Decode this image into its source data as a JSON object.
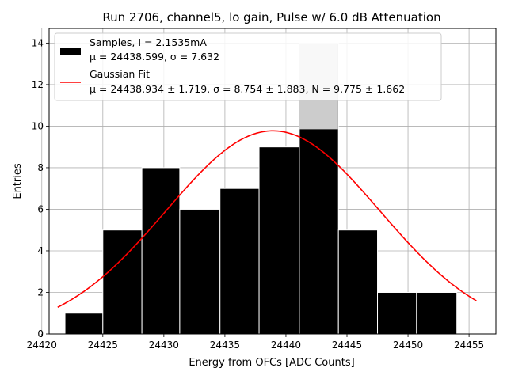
{
  "chart_data": {
    "type": "bar",
    "title": "Run 2706, channel5, lo gain, Pulse w/ 6.0 dB Attenuation",
    "xlabel": "Energy from OFCs [ADC Counts]",
    "ylabel": "Entries",
    "xlim": [
      24420.6,
      24457.2
    ],
    "ylim": [
      0,
      14.7
    ],
    "grid": true,
    "x_ticks": [
      24420,
      24425,
      24430,
      24435,
      24440,
      24445,
      24450,
      24455
    ],
    "y_ticks": [
      0,
      2,
      4,
      6,
      8,
      10,
      12,
      14
    ],
    "legend_placement": "top-left",
    "bars": [
      {
        "x0": 24421.9,
        "x1": 24425.0,
        "value": 1
      },
      {
        "x0": 24425.0,
        "x1": 24428.2,
        "value": 5
      },
      {
        "x0": 24428.2,
        "x1": 24431.3,
        "value": 8
      },
      {
        "x0": 24431.3,
        "x1": 24434.6,
        "value": 6
      },
      {
        "x0": 24434.6,
        "x1": 24437.8,
        "value": 7
      },
      {
        "x0": 24437.8,
        "x1": 24441.1,
        "value": 9
      },
      {
        "x0": 24441.1,
        "x1": 24444.3,
        "value": 14
      },
      {
        "x0": 24444.3,
        "x1": 24447.5,
        "value": 5
      },
      {
        "x0": 24447.5,
        "x1": 24450.7,
        "value": 2
      },
      {
        "x0": 24450.7,
        "x1": 24454.0,
        "value": 2
      }
    ],
    "highlight_bar": {
      "x0": 24441.1,
      "x1": 24444.3,
      "value": 14,
      "color": "#cccccc"
    },
    "fit": {
      "mu": 24438.934,
      "sigma": 8.754,
      "N": 9.775,
      "x_range": [
        24421.3,
        24455.6
      ],
      "color": "#ff0000"
    },
    "series": [
      {
        "name": "Samples, I = 2.1535mA",
        "detail": "μ = 24438.599, σ = 7.632",
        "color": "#000000"
      },
      {
        "name": "Gaussian Fit",
        "detail": "μ = 24438.934 ± 1.719, σ = 8.754 ± 1.883, N = 9.775 ± 1.662",
        "color": "#ff0000"
      }
    ]
  }
}
